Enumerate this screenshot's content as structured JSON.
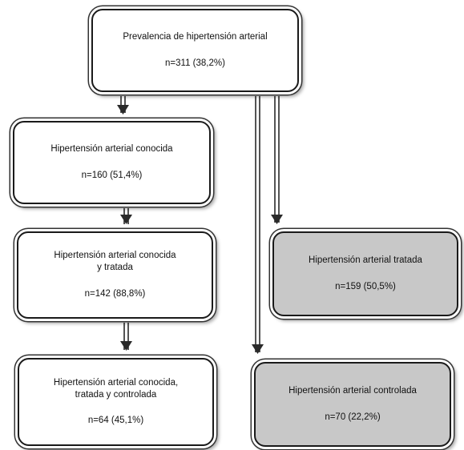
{
  "boxes": {
    "prevalence": {
      "title": "Prevalencia de hipertensión arterial",
      "count": "n=311 (38,2%)"
    },
    "known": {
      "title": "Hipertensión arterial conocida",
      "count": "n=160 (51,4%)"
    },
    "known_treated": {
      "title": "Hipertensión arterial conocida\ny tratada",
      "count": "n=142 (88,8%)"
    },
    "known_treated_controlled": {
      "title": "Hipertensión arterial conocida,\ntratada y controlada",
      "count": "n=64 (45,1%)"
    },
    "treated": {
      "title": "Hipertensión arterial  tratada",
      "count": "n=159 (50,5%)"
    },
    "controlled": {
      "title": "Hipertensión arterial controlada",
      "count": "n=70 (22,2%)"
    }
  },
  "colors": {
    "box_fill": "#ffffff",
    "highlight_fill": "#c8c8c8",
    "stroke": "#1a1a1a"
  }
}
